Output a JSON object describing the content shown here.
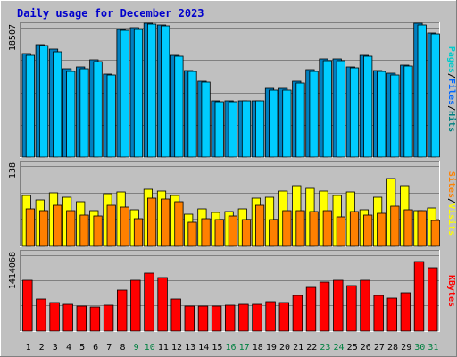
{
  "title": "Daily usage for December 2023",
  "colors": {
    "page_bg": "#c0c0c0",
    "panel_bg": "#c0c0c0",
    "grid": "#808080",
    "title": "#0000cc",
    "pages": "#00cccc",
    "files": "#0066ff",
    "hits": "#008080",
    "visits": "#ffff00",
    "sites": "#ff8000",
    "kbytes": "#ff0000",
    "weekday": "#000000",
    "weekend": "#008040"
  },
  "chart_data": {
    "type": "bar",
    "categories": [
      "1",
      "2",
      "3",
      "4",
      "5",
      "6",
      "7",
      "8",
      "9",
      "10",
      "11",
      "12",
      "13",
      "14",
      "15",
      "16",
      "17",
      "18",
      "19",
      "20",
      "21",
      "22",
      "23",
      "24",
      "25",
      "26",
      "27",
      "28",
      "29",
      "30",
      "31"
    ],
    "weekend_days": [
      "9",
      "10",
      "16",
      "17",
      "23",
      "24",
      "30",
      "31"
    ],
    "panels": [
      {
        "name": "hits-files-pages",
        "max_label": "18507",
        "max": 18507,
        "legend": [
          "Pages",
          "/",
          "Files",
          "/",
          "Hits"
        ],
        "series": [
          {
            "name": "Hits",
            "values": [
              14800,
              16100,
              15500,
              12600,
              12900,
              13900,
              11900,
              18300,
              18500,
              19100,
              18900,
              14600,
              12400,
              10900,
              8000,
              8100,
              8100,
              8100,
              9800,
              9800,
              10800,
              12500,
              14000,
              14000,
              12900,
              14600,
              12400,
              12000,
              13200,
              19100,
              17800
            ]
          },
          {
            "name": "Files",
            "values": [
              14600,
              15900,
              15000,
              12300,
              12600,
              13600,
              11700,
              18100,
              18300,
              19000,
              18700,
              14400,
              12200,
              10700,
              7900,
              7900,
              8000,
              8000,
              9600,
              9600,
              10600,
              12300,
              13800,
              13800,
              12700,
              14400,
              12200,
              11800,
              13000,
              18900,
              17600
            ]
          }
        ]
      },
      {
        "name": "visits-sites",
        "max_label": "138",
        "max": 138,
        "legend": [
          "Sites",
          "/",
          "Visits"
        ],
        "series": [
          {
            "name": "Visits",
            "values": [
              88,
              80,
              92,
              84,
              77,
              61,
              91,
              93,
              63,
              98,
              95,
              88,
              55,
              64,
              59,
              60,
              65,
              83,
              85,
              95,
              104,
              99,
              95,
              88,
              93,
              63,
              84,
              116,
              105,
              61,
              66
            ]
          },
          {
            "name": "Sites",
            "values": [
              64,
              62,
              71,
              62,
              53,
              52,
              70,
              68,
              48,
              83,
              82,
              77,
              41,
              47,
              46,
              52,
              46,
              70,
              46,
              61,
              62,
              60,
              61,
              51,
              60,
              54,
              57,
              69,
              63,
              61,
              44
            ]
          }
        ]
      },
      {
        "name": "kbytes",
        "max_label": "1414068",
        "max": 1414068,
        "legend": [
          "KBytes"
        ],
        "series": [
          {
            "name": "KBytes",
            "values": [
              940000,
              593000,
              535000,
              492000,
              463000,
              445000,
              485000,
              772000,
              940000,
              1080000,
              1000000,
              593000,
              470000,
              470000,
              470000,
              485000,
              497000,
              497000,
              550000,
              529000,
              672000,
              815000,
              917000,
              953000,
              848000,
              949000,
              672000,
              622000,
              713000,
              1290000,
              1180000
            ]
          }
        ]
      }
    ]
  }
}
